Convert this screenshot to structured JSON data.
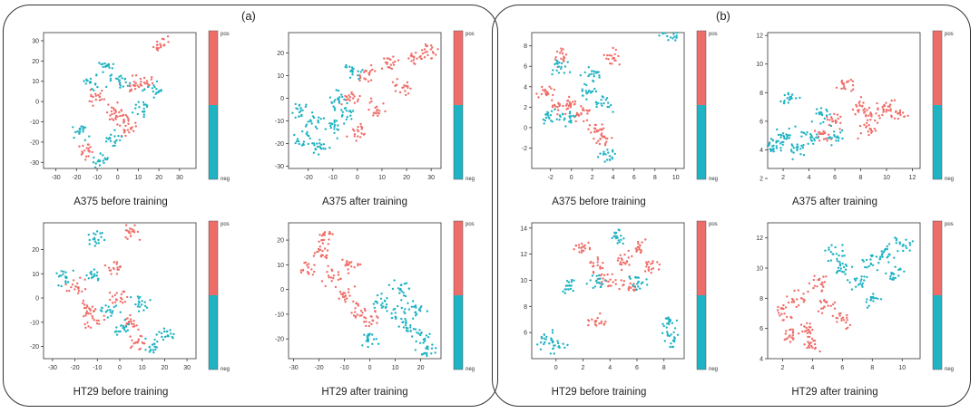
{
  "colors": {
    "pos": "#ef6d68",
    "neg": "#1fb3c3"
  },
  "panels": [
    {
      "label": "(a)"
    },
    {
      "label": "(b)"
    }
  ],
  "chart_data": [
    {
      "type": "scatter",
      "title": "A375 before training",
      "panel": "(a)",
      "xlabel": "",
      "ylabel": "",
      "xlim": [
        -36,
        38
      ],
      "ylim": [
        -33,
        34
      ],
      "xticks": [
        -30,
        -20,
        -10,
        0,
        10,
        20,
        30
      ],
      "yticks": [
        -30,
        -20,
        -10,
        0,
        10,
        20,
        30
      ],
      "legend": {
        "pos_label": "pos",
        "neg_label": "neg"
      },
      "series": [
        {
          "name": "pos",
          "cluster_centers": [
            [
              -15,
              -24
            ],
            [
              -3,
              -5
            ],
            [
              2,
              -8
            ],
            [
              7,
              8
            ],
            [
              -10,
              2
            ],
            [
              21,
              28
            ],
            [
              5,
              -14
            ],
            [
              14,
              9
            ]
          ]
        },
        {
          "name": "neg",
          "cluster_centers": [
            [
              -12,
              10
            ],
            [
              -8,
              -29
            ],
            [
              -5,
              18
            ],
            [
              1,
              11
            ],
            [
              12,
              -3
            ],
            [
              -18,
              -15
            ],
            [
              18,
              6
            ],
            [
              -2,
              -18
            ]
          ]
        }
      ]
    },
    {
      "type": "scatter",
      "title": "A375 after training",
      "panel": "(a)",
      "xlabel": "",
      "ylabel": "",
      "xlim": [
        -28,
        34
      ],
      "ylim": [
        -31,
        29
      ],
      "xticks": [
        -20,
        -10,
        0,
        10,
        20,
        30
      ],
      "yticks": [
        -30,
        -20,
        -10,
        0,
        10,
        20
      ],
      "legend": {
        "pos_label": "pos",
        "neg_label": "neg"
      },
      "series": [
        {
          "name": "pos",
          "cluster_centers": [
            [
              13,
              15
            ],
            [
              4,
              10
            ],
            [
              -3,
              0
            ],
            [
              23,
              18
            ],
            [
              8,
              -5
            ],
            [
              18,
              5
            ],
            [
              30,
              21
            ],
            [
              0,
              -15
            ]
          ]
        },
        {
          "name": "neg",
          "cluster_centers": [
            [
              -18,
              -10
            ],
            [
              -22,
              -18
            ],
            [
              -10,
              -13
            ],
            [
              -8,
              0
            ],
            [
              -2,
              12
            ],
            [
              -15,
              -22
            ],
            [
              -5,
              -6
            ],
            [
              -23,
              -5
            ]
          ]
        }
      ]
    },
    {
      "type": "scatter",
      "title": "HT29 before training",
      "panel": "(a)",
      "xlabel": "",
      "ylabel": "",
      "xlim": [
        -34,
        34
      ],
      "ylim": [
        -25,
        31
      ],
      "xticks": [
        -30,
        -20,
        -10,
        0,
        10,
        20,
        30
      ],
      "yticks": [
        -20,
        -10,
        0,
        10,
        20
      ],
      "legend": {
        "pos_label": "pos",
        "neg_label": "neg"
      },
      "series": [
        {
          "name": "pos",
          "cluster_centers": [
            [
              -12,
              -9
            ],
            [
              0,
              0
            ],
            [
              5,
              -10
            ],
            [
              -2,
              12
            ],
            [
              -20,
              5
            ],
            [
              8,
              -18
            ],
            [
              5,
              27
            ],
            [
              -15,
              -5
            ]
          ]
        },
        {
          "name": "neg",
          "cluster_centers": [
            [
              -10,
              24
            ],
            [
              15,
              -20
            ],
            [
              20,
              -15
            ],
            [
              -5,
              -5
            ],
            [
              0,
              -12
            ],
            [
              10,
              -2
            ],
            [
              -25,
              8
            ],
            [
              -12,
              10
            ]
          ]
        }
      ]
    },
    {
      "type": "scatter",
      "title": "HT29 after training",
      "panel": "(a)",
      "xlabel": "",
      "ylabel": "",
      "xlim": [
        -32,
        28
      ],
      "ylim": [
        -28,
        27
      ],
      "xticks": [
        -30,
        -20,
        -10,
        0,
        10,
        20
      ],
      "yticks": [
        -20,
        -10,
        0,
        10,
        20
      ],
      "legend": {
        "pos_label": "pos",
        "neg_label": "neg"
      },
      "series": [
        {
          "name": "pos",
          "cluster_centers": [
            [
              -20,
              15
            ],
            [
              -15,
              5
            ],
            [
              -10,
              -2
            ],
            [
              -5,
              -8
            ],
            [
              -18,
              22
            ],
            [
              0,
              -12
            ],
            [
              -25,
              8
            ],
            [
              -8,
              10
            ]
          ]
        },
        {
          "name": "neg",
          "cluster_centers": [
            [
              10,
              -10
            ],
            [
              15,
              -15
            ],
            [
              20,
              -20
            ],
            [
              5,
              -5
            ],
            [
              18,
              -8
            ],
            [
              12,
              0
            ],
            [
              0,
              -20
            ],
            [
              22,
              -25
            ]
          ]
        }
      ]
    },
    {
      "type": "scatter",
      "title": "A375 before training",
      "panel": "(b)",
      "xlabel": "",
      "ylabel": "",
      "xlim": [
        -3.8,
        10.8
      ],
      "ylim": [
        -4,
        9.3
      ],
      "xticks": [
        -2,
        0,
        2,
        4,
        6,
        8,
        10
      ],
      "yticks": [
        -2,
        0,
        2,
        4,
        6,
        8
      ],
      "legend": {
        "pos_label": "pos",
        "neg_label": "neg"
      },
      "series": [
        {
          "name": "pos",
          "cluster_centers": [
            [
              -1.5,
              2
            ],
            [
              0,
              2.5
            ],
            [
              -1,
              7
            ],
            [
              2.5,
              0
            ],
            [
              4,
              7
            ],
            [
              1,
              1.5
            ],
            [
              3,
              -1
            ],
            [
              -2.5,
              3.5
            ]
          ]
        },
        {
          "name": "neg",
          "cluster_centers": [
            [
              -2,
              1
            ],
            [
              1.5,
              3.5
            ],
            [
              3,
              2.5
            ],
            [
              -1,
              6
            ],
            [
              3.5,
              -2.8
            ],
            [
              -0.5,
              1
            ],
            [
              2,
              5
            ],
            [
              9.5,
              9
            ]
          ]
        }
      ]
    },
    {
      "type": "scatter",
      "title": "A375 after training",
      "panel": "(b)",
      "xlabel": "",
      "ylabel": "",
      "xlim": [
        0.8,
        12.6
      ],
      "ylim": [
        2.7,
        12.2
      ],
      "xticks": [
        2,
        4,
        6,
        8,
        10,
        12
      ],
      "yticks": [
        2,
        4,
        6,
        8,
        10,
        12
      ],
      "legend": {
        "pos_label": "pos",
        "neg_label": "neg"
      },
      "series": [
        {
          "name": "pos",
          "cluster_centers": [
            [
              8,
              7
            ],
            [
              9,
              6.5
            ],
            [
              7,
              8.5
            ],
            [
              10,
              7
            ],
            [
              6,
              6
            ],
            [
              11,
              6.5
            ],
            [
              8.5,
              5.5
            ],
            [
              5,
              5
            ]
          ]
        },
        {
          "name": "neg",
          "cluster_centers": [
            [
              2,
              5
            ],
            [
              3,
              4
            ],
            [
              1.5,
              4.5
            ],
            [
              4,
              5
            ],
            [
              5,
              6.5
            ],
            [
              2.5,
              7.5
            ],
            [
              6,
              5
            ],
            [
              1,
              4
            ]
          ]
        }
      ]
    },
    {
      "type": "scatter",
      "title": "HT29 before training",
      "panel": "(b)",
      "xlabel": "",
      "ylabel": "",
      "xlim": [
        -1.8,
        9.5
      ],
      "ylim": [
        4,
        14.4
      ],
      "xticks": [
        0,
        2,
        4,
        6,
        8
      ],
      "yticks": [
        6,
        8,
        10,
        12,
        14
      ],
      "legend": {
        "pos_label": "pos",
        "neg_label": "neg"
      },
      "series": [
        {
          "name": "pos",
          "cluster_centers": [
            [
              3,
              11
            ],
            [
              5,
              11.5
            ],
            [
              3,
              6.8
            ],
            [
              7,
              11
            ],
            [
              2,
              12.5
            ],
            [
              6,
              12.5
            ],
            [
              4,
              10
            ],
            [
              5.5,
              9.5
            ]
          ]
        },
        {
          "name": "neg",
          "cluster_centers": [
            [
              -0.8,
              5.5
            ],
            [
              0,
              5
            ],
            [
              8.5,
              5.5
            ],
            [
              8.5,
              6.8
            ],
            [
              1,
              9.5
            ],
            [
              3,
              10
            ],
            [
              6,
              10
            ],
            [
              4.5,
              13.3
            ]
          ]
        }
      ]
    },
    {
      "type": "scatter",
      "title": "HT29 after training",
      "panel": "(b)",
      "xlabel": "",
      "ylabel": "",
      "xlim": [
        1,
        11.2
      ],
      "ylim": [
        4,
        13
      ],
      "xticks": [
        2,
        4,
        6,
        8,
        10
      ],
      "yticks": [
        4,
        6,
        8,
        10,
        12
      ],
      "legend": {
        "pos_label": "pos",
        "neg_label": "neg"
      },
      "series": [
        {
          "name": "pos",
          "cluster_centers": [
            [
              2.5,
              5.5
            ],
            [
              3.5,
              6
            ],
            [
              4,
              5
            ],
            [
              2,
              7
            ],
            [
              5,
              7.5
            ],
            [
              3,
              8
            ],
            [
              4.5,
              9
            ],
            [
              6,
              6.5
            ]
          ]
        },
        {
          "name": "neg",
          "cluster_centers": [
            [
              8,
              10.5
            ],
            [
              9,
              11
            ],
            [
              10,
              11.5
            ],
            [
              7,
              9
            ],
            [
              6,
              10
            ],
            [
              9.5,
              9.5
            ],
            [
              8,
              8
            ],
            [
              5.5,
              11
            ]
          ]
        }
      ]
    }
  ]
}
